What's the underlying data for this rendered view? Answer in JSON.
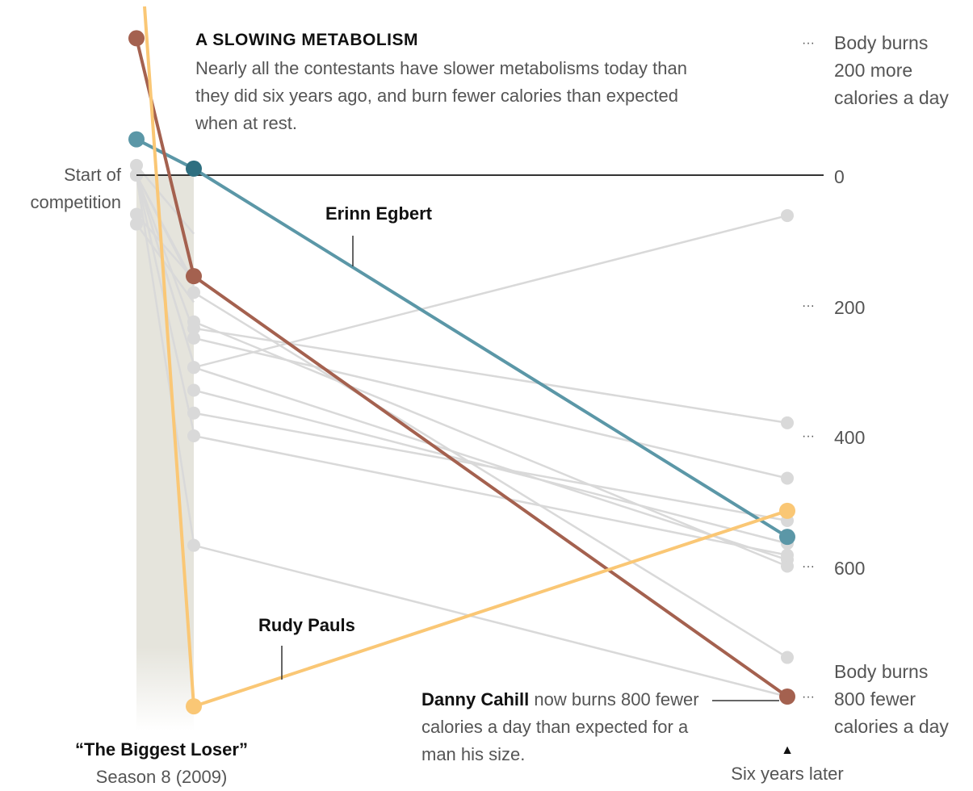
{
  "chart_data": {
    "type": "line",
    "title": "A SLOWING METABOLISM",
    "subtitle": "Nearly all the contestants have slower metabolisms today than they did six years ago, and burn fewer calories than expected when at rest.",
    "x_labels": {
      "start_a": "Start of",
      "start_b": "competition",
      "show_a": "“The Biggest Loser”",
      "show_b": "Season 8 (2009)",
      "later": "Six years later",
      "later_marker": "▲"
    },
    "y_ticks": [
      {
        "value": -200,
        "label_a": "Body burns",
        "label_b": "200 more",
        "label_c": "calories a day"
      },
      {
        "value": 0,
        "label": "0"
      },
      {
        "value": 200,
        "label": "200"
      },
      {
        "value": 400,
        "label": "400"
      },
      {
        "value": 600,
        "label": "600"
      },
      {
        "value": 800,
        "label_a": "Body burns",
        "label_b": "800 fewer",
        "label_c": "calories a day"
      }
    ],
    "ylim": [
      -260,
      850
    ],
    "colors": {
      "gray": "#d9d9d9",
      "erinn": "#5b97a7",
      "danny": "#a4614f",
      "rudy": "#fac775",
      "zero": "#333333",
      "band": "#e5e4dc"
    },
    "highlight_labels": {
      "erinn": "Erinn Egbert",
      "rudy": "Rudy Pauls",
      "danny_name": "Danny Cahill",
      "danny_rest": " now burns 800 fewer calories a day than expected for a man his size."
    },
    "series": [
      {
        "key": "g1",
        "values": [
          -15,
          90,
          295,
          590
        ],
        "highlight": false
      },
      {
        "key": "g2",
        "values": [
          60,
          160,
          365,
          530
        ],
        "highlight": false
      },
      {
        "key": "g3",
        "values": [
          75,
          195,
          180,
          740
        ],
        "highlight": false
      },
      {
        "key": "g4",
        "values": [
          0,
          165,
          235,
          380
        ],
        "highlight": false
      },
      {
        "key": "g5",
        "values": [
          0,
          170,
          225,
          600
        ],
        "highlight": false
      },
      {
        "key": "g6",
        "values": [
          0,
          290,
          295,
          62
        ],
        "highlight": false
      },
      {
        "key": "g7",
        "values": [
          0,
          290,
          330,
          565
        ],
        "highlight": false
      },
      {
        "key": "g8",
        "values": [
          0,
          395,
          400,
          583
        ],
        "highlight": false
      },
      {
        "key": "g9",
        "values": [
          0,
          565,
          568,
          800
        ],
        "highlight": false
      },
      {
        "key": "g10",
        "values": [
          0,
          240,
          250,
          465
        ],
        "highlight": false
      },
      {
        "key": "erinn",
        "name": "Erinn Egbert",
        "values": [
          -55,
          -10,
          -10,
          555
        ],
        "highlight": true
      },
      {
        "key": "danny",
        "name": "Danny Cahill",
        "values": [
          -210,
          155,
          155,
          800
        ],
        "highlight": true
      },
      {
        "key": "rudy",
        "name": "Rudy Pauls",
        "values": [
          -260,
          815,
          815,
          515
        ],
        "highlight": true
      }
    ]
  }
}
